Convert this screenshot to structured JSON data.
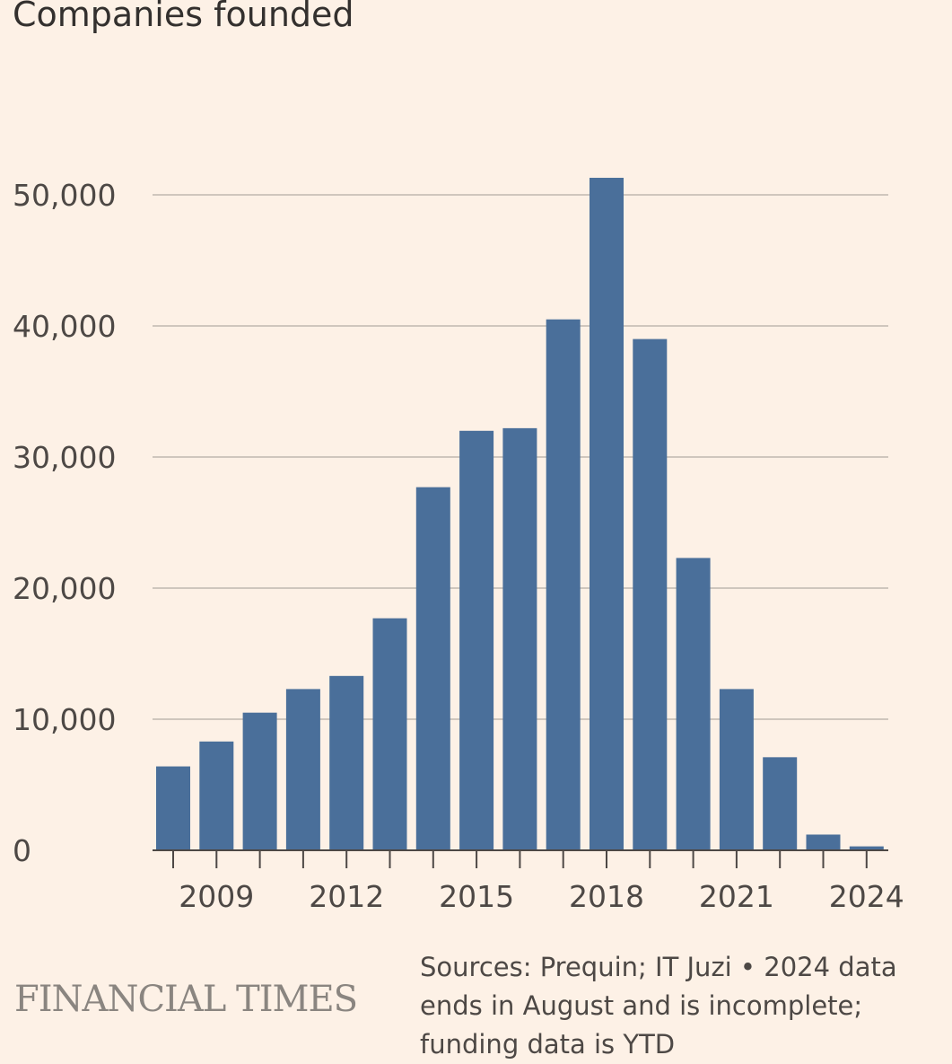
{
  "chart_data": {
    "type": "bar",
    "title": "Companies founded",
    "categories": [
      "2008",
      "2009",
      "2010",
      "2011",
      "2012",
      "2013",
      "2014",
      "2015",
      "2016",
      "2017",
      "2018",
      "2019",
      "2020",
      "2021",
      "2022",
      "2023",
      "2024"
    ],
    "values": [
      6400,
      8300,
      10500,
      12300,
      13300,
      17700,
      27700,
      32000,
      32200,
      40500,
      51300,
      39000,
      22300,
      12300,
      7100,
      1200,
      300
    ],
    "xtick_labels": [
      "2009",
      "2012",
      "2015",
      "2018",
      "2021",
      "2024"
    ],
    "ytick_labels": [
      "0",
      "10,000",
      "20,000",
      "30,000",
      "40,000",
      "50,000"
    ],
    "ylim": [
      0,
      50000
    ],
    "grid": true,
    "bar_color": "#4a6f9a",
    "gridline_color": "#cfc6bd"
  },
  "footer": {
    "logo": "FINANCIAL TIMES",
    "source": "Sources: Prequin; IT Juzi • 2024 data ends in August and is incomplete; funding data is YTD"
  }
}
